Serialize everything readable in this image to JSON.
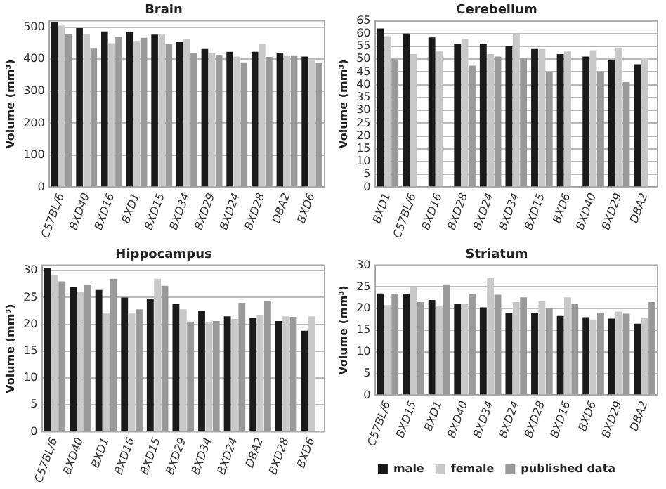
{
  "chart_data": [
    {
      "type": "bar",
      "title": "Brain",
      "ylabel": "Volume (mm³)",
      "categories": [
        "C57BL/6",
        "BXD40",
        "BXD16",
        "BXD1",
        "BXD15",
        "BXD34",
        "BXD29",
        "BXD24",
        "BXD28",
        "DBA2",
        "BXD6"
      ],
      "series": [
        {
          "color": "#1a1a1a",
          "values": [
            515,
            497,
            487,
            485,
            477,
            453,
            432,
            423,
            423,
            420,
            408
          ]
        },
        {
          "color": "#c8c8c8",
          "values": [
            505,
            478,
            450,
            455,
            477,
            462,
            418,
            408,
            448,
            412,
            398
          ]
        },
        {
          "color": "#9a9a9a",
          "values": [
            478,
            433,
            470,
            467,
            447,
            418,
            413,
            390,
            407,
            412,
            388
          ]
        }
      ],
      "ylim": [
        0,
        520
      ],
      "yticks": [
        0,
        100,
        200,
        300,
        400,
        500
      ],
      "grid": "y",
      "legend": false
    },
    {
      "type": "bar",
      "title": "Cerebellum",
      "ylabel": "Volume (mm³)",
      "categories": [
        "BXD1",
        "C57BL/6",
        "BXD16",
        "BXD28",
        "BXD24",
        "BXD34",
        "BXD15",
        "BXD6",
        "BXD40",
        "BXD29",
        "DBA2"
      ],
      "series": [
        {
          "color": "#1a1a1a",
          "values": [
            62,
            60,
            58.5,
            56,
            56,
            55,
            54,
            52,
            51,
            49.5,
            48
          ]
        },
        {
          "color": "#c8c8c8",
          "values": [
            59,
            52,
            53,
            58,
            52,
            60,
            54,
            53,
            53.5,
            54.5,
            50.5
          ]
        },
        {
          "color": "#9a9a9a",
          "values": [
            50,
            null,
            null,
            47.5,
            51,
            50.5,
            45,
            null,
            45,
            41,
            null
          ]
        }
      ],
      "ylim": [
        0,
        65
      ],
      "yticks": [
        0,
        5,
        10,
        15,
        20,
        25,
        30,
        35,
        40,
        45,
        50,
        55,
        60,
        65
      ],
      "grid": "y",
      "legend": false
    },
    {
      "type": "bar",
      "title": "Hippocampus",
      "ylabel": "Volume (mm³)",
      "categories": [
        "C57BL/6",
        "BXD40",
        "BXD1",
        "BXD16",
        "BXD15",
        "BXD29",
        "BXD34",
        "BXD24",
        "DBA2",
        "BXD28",
        "BXD6"
      ],
      "series": [
        {
          "color": "#1a1a1a",
          "values": [
            30.5,
            27,
            26.4,
            25,
            24.8,
            23.8,
            22.5,
            21.5,
            21.2,
            20.6,
            18.8
          ]
        },
        {
          "color": "#c8c8c8",
          "values": [
            29.2,
            26,
            22,
            22,
            28.5,
            22.8,
            20.5,
            21,
            21.8,
            21.5,
            21.5
          ]
        },
        {
          "color": "#9a9a9a",
          "values": [
            28,
            27.4,
            28.5,
            22.8,
            27.2,
            20.5,
            20.6,
            24,
            24.4,
            21.4,
            null
          ]
        }
      ],
      "ylim": [
        0,
        31
      ],
      "yticks": [
        0,
        5,
        10,
        15,
        20,
        25,
        30
      ],
      "grid": "y",
      "legend": false
    },
    {
      "type": "bar",
      "title": "Striatum",
      "ylabel": "Volume (mm³)",
      "categories": [
        "C57BL/6",
        "BXD15",
        "BXD1",
        "BXD40",
        "BXD34",
        "BXD24",
        "BXD28",
        "BXD16",
        "BXD6",
        "BXD29",
        "DBA2"
      ],
      "series": [
        {
          "name": "male",
          "color": "#1a1a1a",
          "values": [
            23.5,
            23.4,
            22,
            21,
            20.3,
            19,
            18.9,
            18.3,
            18,
            17.7,
            16.5
          ]
        },
        {
          "name": "female",
          "color": "#c8c8c8",
          "values": [
            20.8,
            25,
            20.5,
            21,
            27,
            21.5,
            21.7,
            22.6,
            17.5,
            19.3,
            17.8
          ]
        },
        {
          "name": "published data",
          "color": "#9a9a9a",
          "values": [
            23.4,
            21.5,
            25.6,
            23.4,
            23.2,
            22.6,
            20.2,
            21,
            19,
            18.8,
            21.5
          ]
        }
      ],
      "ylim": [
        0,
        30
      ],
      "yticks": [
        0,
        5,
        10,
        15,
        20,
        25,
        30
      ],
      "grid": "y",
      "legend": "bottom"
    }
  ]
}
